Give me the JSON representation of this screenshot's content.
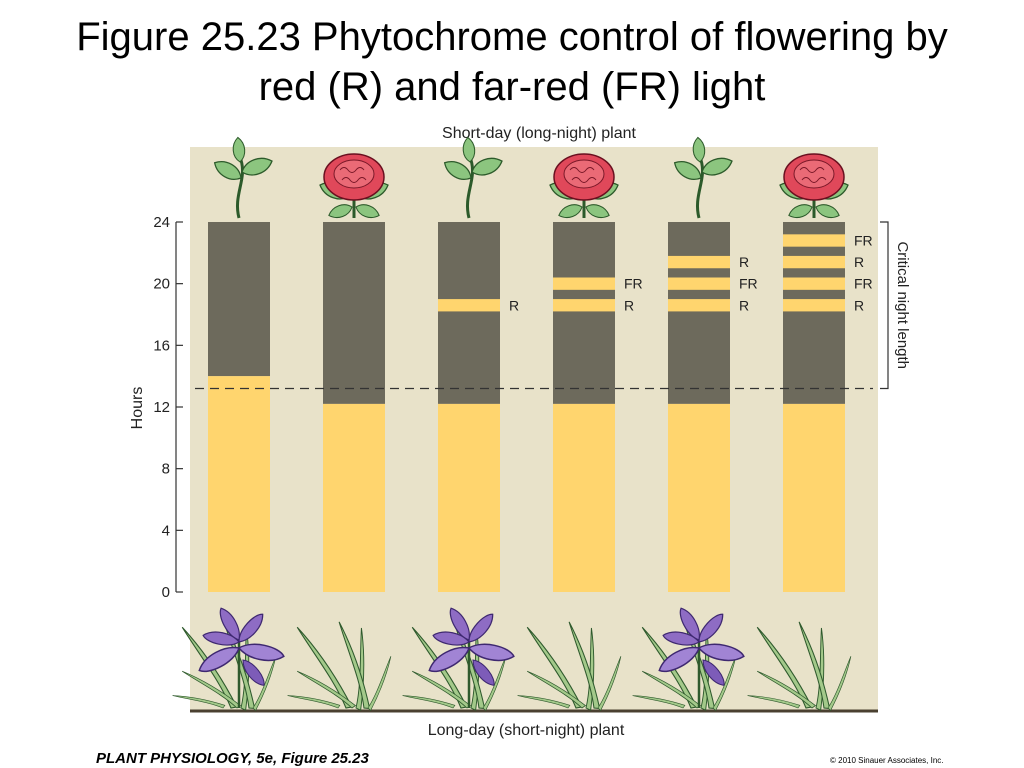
{
  "slide": {
    "title_line1": "Figure 25.23  Phytochrome control of flowering by",
    "title_line2": "red (R) and far-red (FR) light",
    "footer_source": "PLANT PHYSIOLOGY, 5e, Figure 25.23",
    "footer_copyright": "© 2010 Sinauer Associates, Inc."
  },
  "chart_data": {
    "type": "bar",
    "subtitle_top": "Short-day (long-night) plant",
    "subtitle_bottom": "Long-day (short-night) plant",
    "ylabel": "Hours",
    "ylim": [
      0,
      24
    ],
    "yticks": [
      0,
      4,
      8,
      12,
      16,
      20,
      24
    ],
    "critical_night_length_hours": 13.2,
    "critical_label": "Critical night length",
    "colors": {
      "day": "#ffd56e",
      "night": "#6d6a5c",
      "background": "#e8e2c9"
    },
    "bars": [
      {
        "day_length": 14.0,
        "flashes": [],
        "short_day_plant_flowers": false,
        "long_day_plant_flowers": true
      },
      {
        "day_length": 12.2,
        "flashes": [],
        "short_day_plant_flowers": true,
        "long_day_plant_flowers": false
      },
      {
        "day_length": 12.2,
        "flashes": [
          {
            "start": 18.2,
            "end": 19.0,
            "label": "R"
          }
        ],
        "short_day_plant_flowers": false,
        "long_day_plant_flowers": true
      },
      {
        "day_length": 12.2,
        "flashes": [
          {
            "start": 18.2,
            "end": 19.0,
            "label": "R"
          },
          {
            "start": 19.6,
            "end": 20.4,
            "label": "FR"
          }
        ],
        "short_day_plant_flowers": true,
        "long_day_plant_flowers": false
      },
      {
        "day_length": 12.2,
        "flashes": [
          {
            "start": 18.2,
            "end": 19.0,
            "label": "R"
          },
          {
            "start": 19.6,
            "end": 20.4,
            "label": "FR"
          },
          {
            "start": 21.0,
            "end": 21.8,
            "label": "R"
          }
        ],
        "short_day_plant_flowers": false,
        "long_day_plant_flowers": true
      },
      {
        "day_length": 12.2,
        "flashes": [
          {
            "start": 18.2,
            "end": 19.0,
            "label": "R"
          },
          {
            "start": 19.6,
            "end": 20.4,
            "label": "FR"
          },
          {
            "start": 21.0,
            "end": 21.8,
            "label": "R"
          },
          {
            "start": 22.4,
            "end": 23.2,
            "label": "FR"
          }
        ],
        "short_day_plant_flowers": true,
        "long_day_plant_flowers": false
      }
    ]
  }
}
